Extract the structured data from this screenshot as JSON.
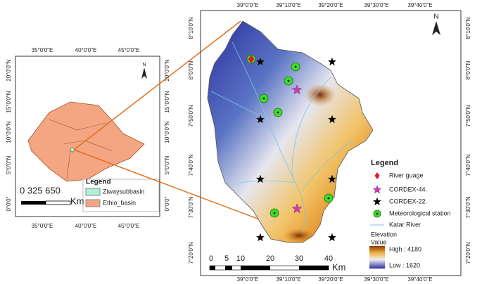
{
  "inset": {
    "lon_labels": [
      "35°0'0\"E",
      "40°0'0\"E",
      "45°0'0\"E"
    ],
    "lat_labels": [
      "20°0'0\"N",
      "15°0'0\"N",
      "10°0'0\"N",
      "5°0'0\"N",
      "0°0'0\""
    ],
    "north": "N",
    "legend": {
      "title": "Legend",
      "items": [
        "Ziwaysubbasin",
        "Ethio_basin"
      ]
    },
    "scale": {
      "numbers": "0   325 650",
      "unit": "Km"
    }
  },
  "main": {
    "lon_labels": [
      "39°0'0\"E",
      "39°10'0\"E",
      "39°20'0\"E",
      "39°30'0\"E",
      "39°40'0\"E"
    ],
    "lat_labels": [
      "8°10'0\"N",
      "8°0'0\"N",
      "7°50'0\"N",
      "7°40'0\"N",
      "7°30'0\"N",
      "7°20'0\"N"
    ],
    "north": "N",
    "legend": {
      "title": "Legend",
      "items": [
        "River guage",
        "CORDEX-44.",
        "CORDEX-22.",
        "Meteorological station",
        "Katar River"
      ],
      "elevation_title": "Elevation",
      "value_title": "Value",
      "high": "High : 4180",
      "low": "Low : 1620"
    },
    "scale": {
      "ticks": [
        "0",
        "5",
        "10",
        "20",
        "30",
        "40"
      ],
      "unit": "Km"
    }
  }
}
